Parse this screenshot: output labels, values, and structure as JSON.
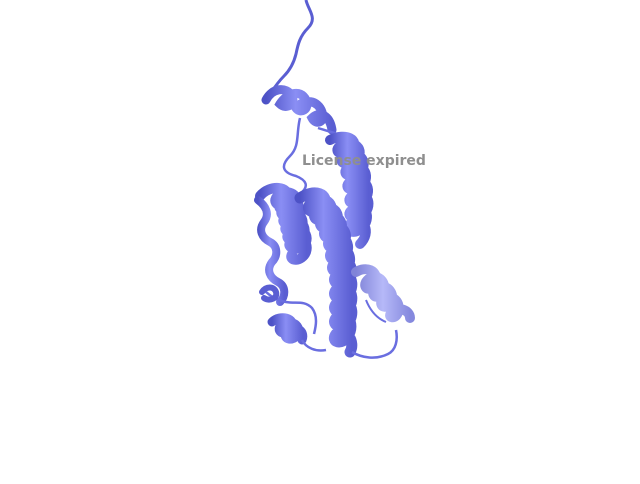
{
  "scene": {
    "subject": "protein-cartoon",
    "colors": {
      "ribbon": "#7b7ff0",
      "ribbon_shadow": "#4d52c6",
      "ribbon_light": "#aeb1f7",
      "coil": "#6a6ee0",
      "background": "#ffffff"
    }
  },
  "watermark": {
    "text": "License expired"
  }
}
